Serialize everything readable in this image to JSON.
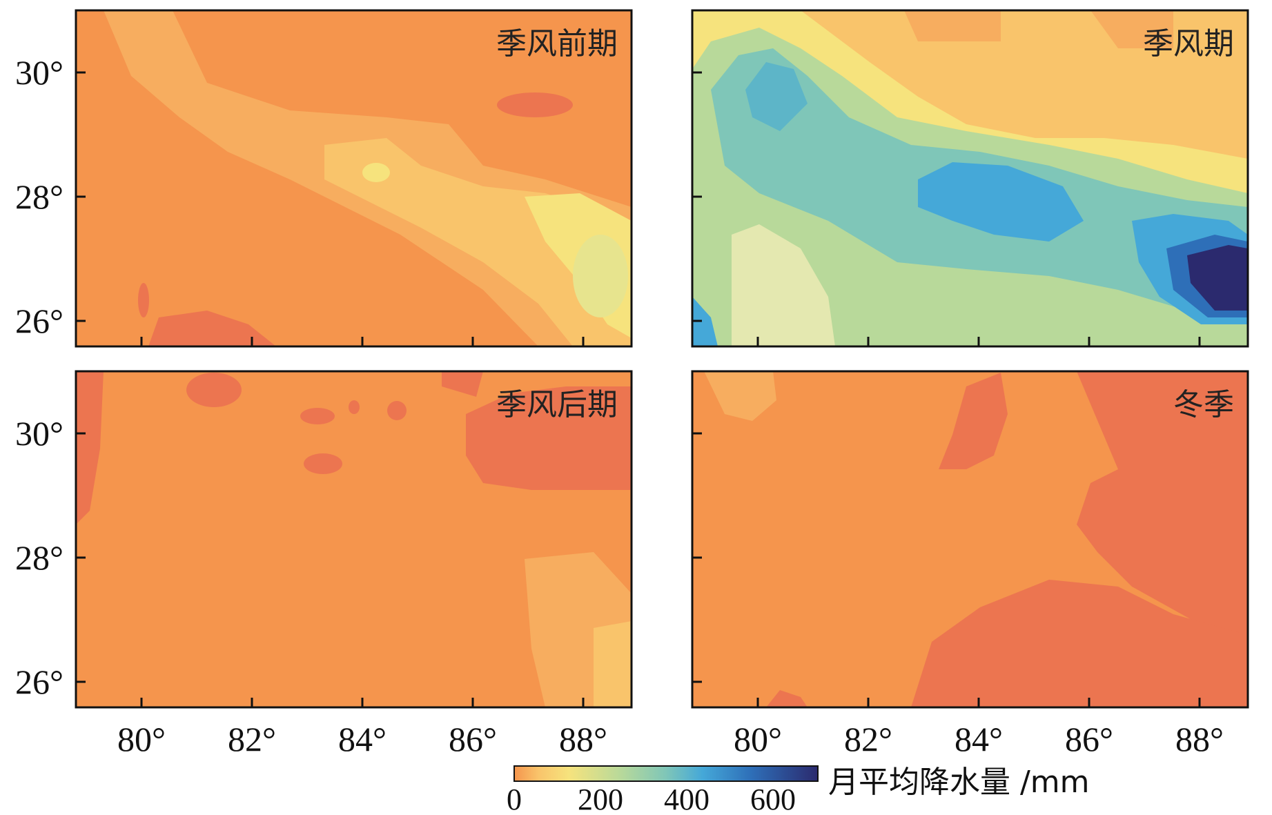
{
  "panels": [
    {
      "id": "pre-monsoon",
      "label": "季风前期"
    },
    {
      "id": "monsoon",
      "label": "季风期"
    },
    {
      "id": "post-monsoon",
      "label": "季风后期"
    },
    {
      "id": "winter",
      "label": "冬季"
    }
  ],
  "axes": {
    "x_ticks": [
      "80°",
      "82°",
      "84°",
      "86°",
      "88°"
    ],
    "y_ticks": [
      "30°",
      "28°",
      "26°"
    ]
  },
  "colorbar": {
    "label": "月平均降水量 /mm",
    "ticks": [
      "0",
      "200",
      "400",
      "600"
    ],
    "colors": [
      "#f5954d",
      "#f9c46b",
      "#f6e37d",
      "#b8d99a",
      "#7fc6b8",
      "#45a8d8",
      "#2e6fb8",
      "#2b2a6e"
    ]
  },
  "chart_data": {
    "type": "heatmap",
    "x_range_deg": [
      78.8,
      89
    ],
    "y_range_deg": [
      25.6,
      31
    ],
    "value_range_mm": [
      0,
      700
    ],
    "panels": [
      {
        "name": "季风前期",
        "dominant_range_mm": [
          0,
          150
        ],
        "max_region": "east, near 88-89°E 26-27°N"
      },
      {
        "name": "季风期",
        "dominant_range_mm": [
          100,
          700
        ],
        "max_region": "east, near 88-89°E 26-27°N (~600+)"
      },
      {
        "name": "季风后期",
        "dominant_range_mm": [
          0,
          100
        ],
        "max_region": "southeast, near 88°E 26-28°N"
      },
      {
        "name": "冬季",
        "dominant_range_mm": [
          0,
          50
        ],
        "max_region": "northwest corner"
      }
    ]
  }
}
